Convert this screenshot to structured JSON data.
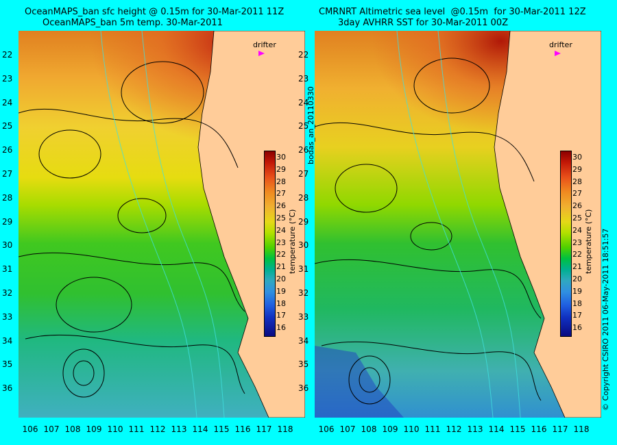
{
  "left_panel": {
    "title_line1": "OceanMAPS_ban sfc height @ 0.15m for 30-Mar-2011 11Z",
    "title_line2": "OceanMAPS_ban 5m temp. 30-Mar-2011"
  },
  "right_panel": {
    "title_line1": "CMRNRT Altimetric sea level  @0.15m  for 30-Mar-2011 12Z",
    "title_line2": "3day AVHRR SST for 30-Mar-2011 00Z"
  },
  "lat_ticks": [
    "22",
    "23",
    "24",
    "25",
    "26",
    "27",
    "28",
    "29",
    "30",
    "31",
    "32",
    "33",
    "34",
    "35",
    "36"
  ],
  "lon_ticks": [
    "106",
    "107",
    "108",
    "109",
    "110",
    "111",
    "112",
    "113",
    "114",
    "115",
    "116",
    "117",
    "118"
  ],
  "colorbar": {
    "ticks": [
      "30",
      "29",
      "28",
      "27",
      "26",
      "25",
      "24",
      "23",
      "22",
      "21",
      "20",
      "19",
      "18",
      "17",
      "16"
    ],
    "label": "temperature (°C)"
  },
  "drifter_label": "drifter",
  "side_label": "bodas_an_20110330",
  "copyright": "© Copyright CSIRO 2011  06-May-2011 18:51:57",
  "colors": {
    "background": "#00ffff",
    "land": "#ffcc99",
    "drifter_marker": "#ff00ff"
  }
}
